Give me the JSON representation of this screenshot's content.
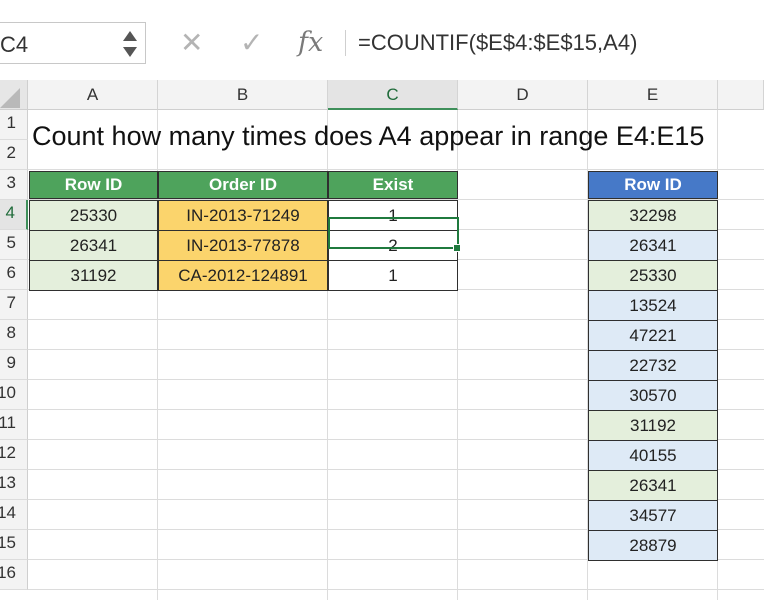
{
  "formula_bar": {
    "name_box": "C4",
    "cancel_glyph": "✕",
    "enter_glyph": "✓",
    "fx_label": "fx",
    "formula": "=COUNTIF($E$4:$E$15,A4)"
  },
  "columns": [
    "A",
    "B",
    "C",
    "D",
    "E"
  ],
  "selected_column": "C",
  "rows": [
    "1",
    "2",
    "3",
    "4",
    "5",
    "6",
    "7",
    "8",
    "9",
    "10",
    "11",
    "12",
    "13",
    "14",
    "15",
    "16"
  ],
  "selected_row": "4",
  "title": "Count how many times does A4 appear in range E4:E15",
  "table": {
    "headers": [
      "Row ID",
      "Order ID",
      "Exist"
    ],
    "rows": [
      {
        "row_id": "25330",
        "order_id": "IN-2013-71249",
        "exist": "1"
      },
      {
        "row_id": "26341",
        "order_id": "IN-2013-77878",
        "exist": "2"
      },
      {
        "row_id": "31192",
        "order_id": "CA-2012-124891",
        "exist": "1"
      }
    ]
  },
  "lookup": {
    "header": "Row ID",
    "values": [
      "32298",
      "26341",
      "25330",
      "13524",
      "47221",
      "22732",
      "30570",
      "31192",
      "40155",
      "26341",
      "34577",
      "28879"
    ]
  },
  "colors": {
    "header_green": "#4ea35c",
    "header_blue": "#4679c8",
    "row_id_fill": "#e4efdc",
    "order_id_fill": "#fbd46c",
    "lookup_fill_green": "#e4efdc",
    "lookup_fill_blue": "#deeaf6",
    "selection": "#1f7a3e"
  },
  "icons": [
    "cancel-icon",
    "enter-icon",
    "fx-icon",
    "name-box-arrows-icon",
    "select-all-icon"
  ]
}
